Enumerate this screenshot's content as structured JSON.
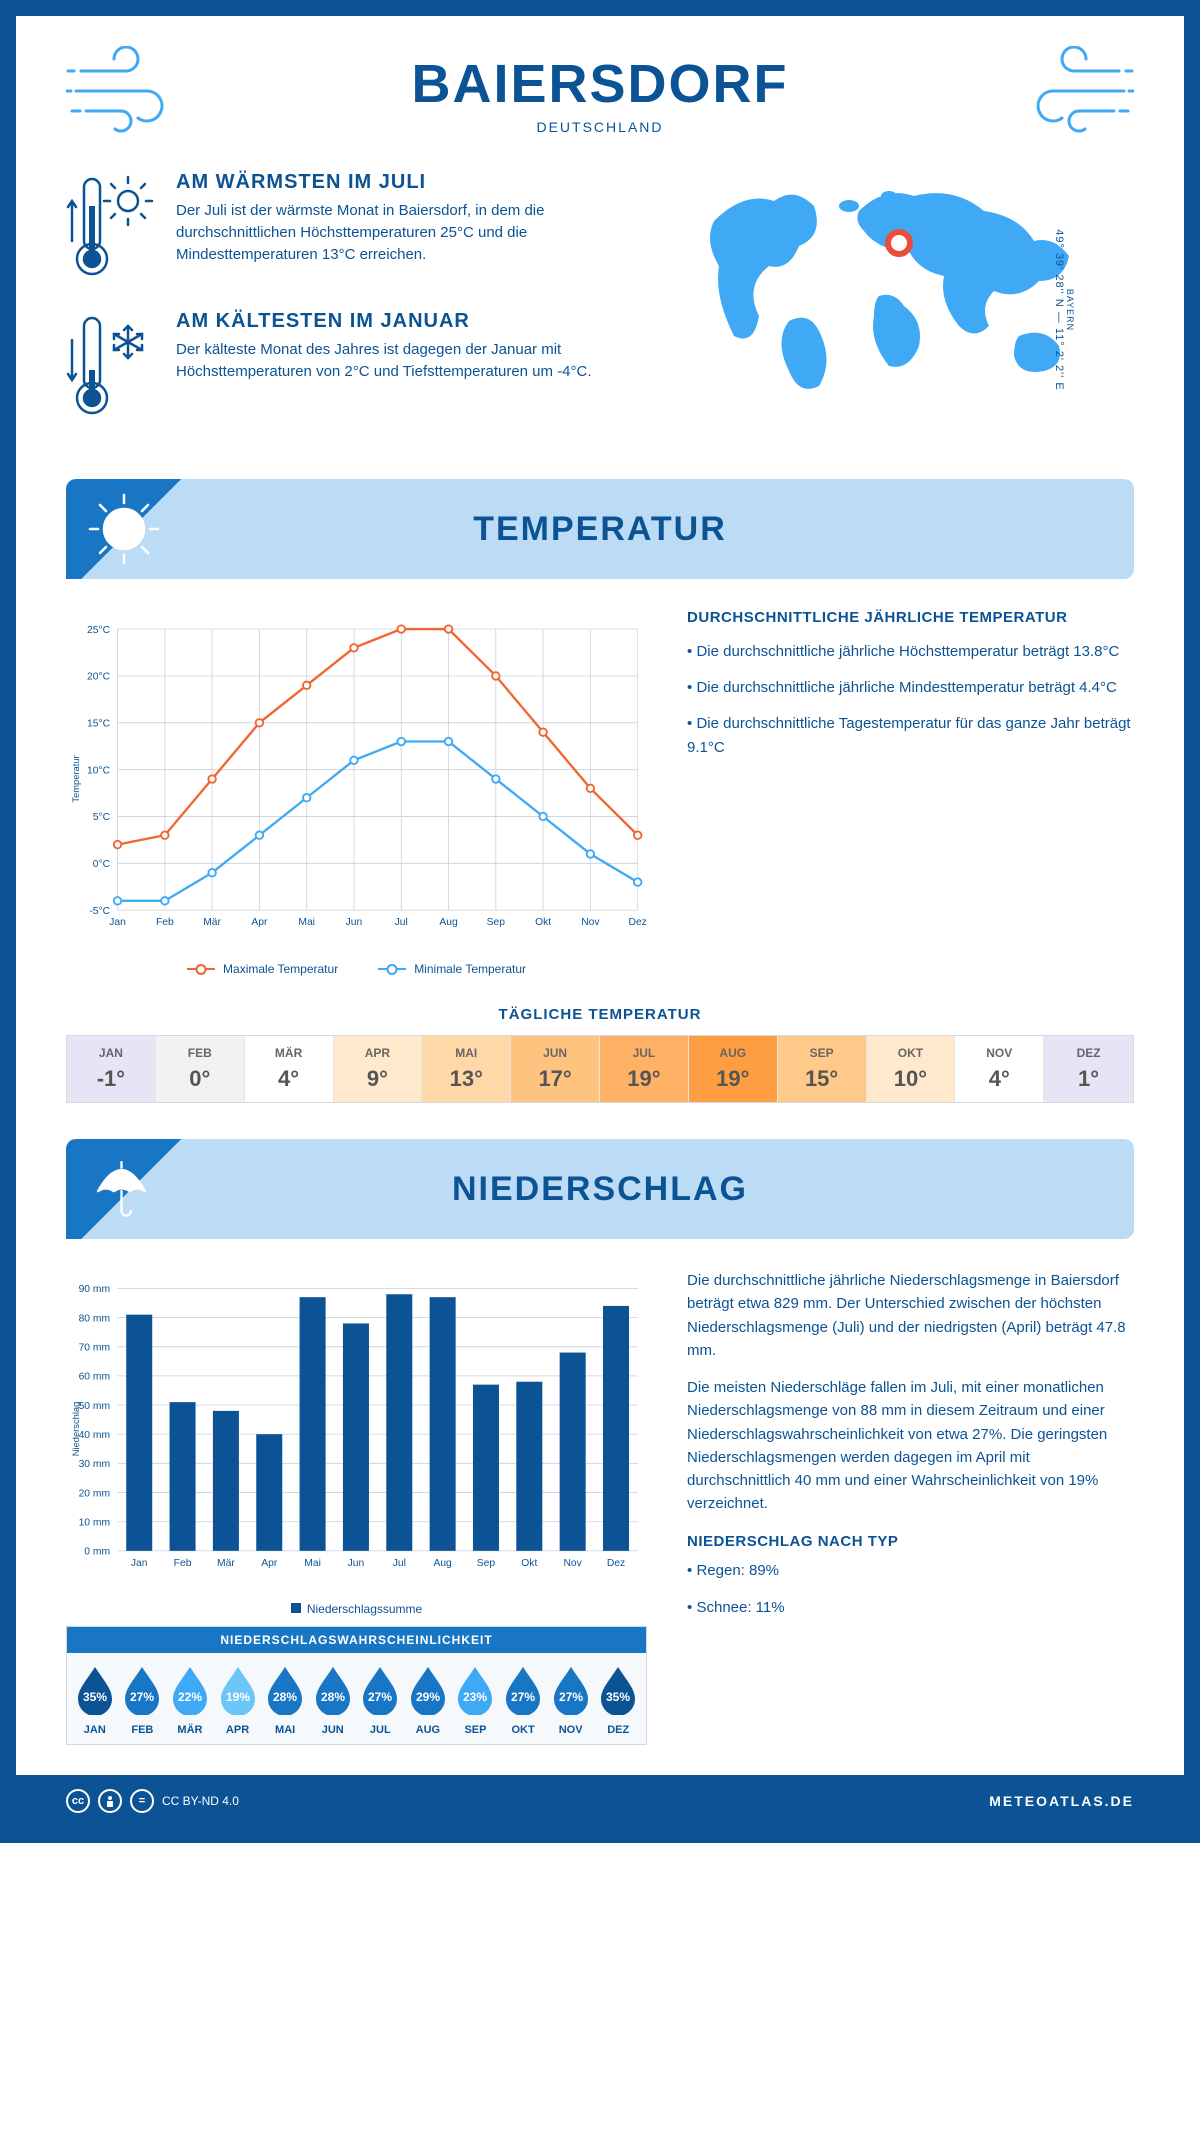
{
  "header": {
    "city": "BAIERSDORF",
    "country": "DEUTSCHLAND",
    "region": "BAYERN",
    "coords": "49° 39' 28'' N — 11° 2' 2'' E"
  },
  "colors": {
    "primary": "#0b5394",
    "banner_bg": "#bcdcf5",
    "banner_corner": "#1976c5",
    "line_max": "#f26531",
    "line_min": "#3fa9f5",
    "grid": "#d0d7e2",
    "bar": "#0b5394",
    "marker": "#e94e3a"
  },
  "facts": {
    "warm": {
      "title": "AM WÄRMSTEN IM JULI",
      "text": "Der Juli ist der wärmste Monat in Baiersdorf, in dem die durchschnittlichen Höchsttemperaturen 25°C und die Mindesttemperaturen 13°C erreichen."
    },
    "cold": {
      "title": "AM KÄLTESTEN IM JANUAR",
      "text": "Der kälteste Monat des Jahres ist dagegen der Januar mit Höchsttemperaturen von 2°C und Tiefsttemperaturen um -4°C."
    }
  },
  "temperature": {
    "section_title": "TEMPERATUR",
    "side": {
      "title": "DURCHSCHNITTLICHE JÄHRLICHE TEMPERATUR",
      "b1": "• Die durchschnittliche jährliche Höchsttemperatur beträgt 13.8°C",
      "b2": "• Die durchschnittliche jährliche Mindesttemperatur beträgt 4.4°C",
      "b3": "• Die durchschnittliche Tagestemperatur für das ganze Jahr beträgt 9.1°C"
    },
    "months": [
      "Jan",
      "Feb",
      "Mär",
      "Apr",
      "Mai",
      "Jun",
      "Jul",
      "Aug",
      "Sep",
      "Okt",
      "Nov",
      "Dez"
    ],
    "max": [
      2,
      3,
      9,
      15,
      19,
      23,
      25,
      25,
      20,
      14,
      8,
      3
    ],
    "min": [
      -4,
      -4,
      -1,
      3,
      7,
      11,
      13,
      13,
      9,
      5,
      1,
      -2
    ],
    "ylim": [
      -5,
      25
    ],
    "ytick_step": 5,
    "legend_max": "Maximale Temperatur",
    "legend_min": "Minimale Temperatur",
    "axis_label": "Temperatur",
    "daily_title": "TÄGLICHE TEMPERATUR",
    "daily_months": [
      "JAN",
      "FEB",
      "MÄR",
      "APR",
      "MAI",
      "JUN",
      "JUL",
      "AUG",
      "SEP",
      "OKT",
      "NOV",
      "DEZ"
    ],
    "daily_values": [
      "-1°",
      "0°",
      "4°",
      "9°",
      "13°",
      "17°",
      "19°",
      "19°",
      "15°",
      "10°",
      "4°",
      "1°"
    ],
    "daily_colors": [
      "#e8e3f5",
      "#f2f2f2",
      "#ffffff",
      "#ffe9cc",
      "#ffd8a8",
      "#ffc380",
      "#ffb266",
      "#ff9d42",
      "#ffc98a",
      "#ffe9cc",
      "#ffffff",
      "#e8e3f5"
    ]
  },
  "precip": {
    "section_title": "NIEDERSCHLAG",
    "values": [
      81,
      51,
      48,
      40,
      87,
      78,
      88,
      87,
      57,
      58,
      68,
      84
    ],
    "ylim": [
      0,
      90
    ],
    "ytick_step": 10,
    "axis_label": "Niederschlag",
    "legend": "Niederschlagssumme",
    "text1": "Die durchschnittliche jährliche Niederschlagsmenge in Baiersdorf beträgt etwa 829 mm. Der Unterschied zwischen der höchsten Niederschlagsmenge (Juli) und der niedrigsten (April) beträgt 47.8 mm.",
    "text2": "Die meisten Niederschläge fallen im Juli, mit einer monatlichen Niederschlagsmenge von 88 mm in diesem Zeitraum und einer Niederschlagswahrscheinlichkeit von etwa 27%. Die geringsten Niederschlagsmengen werden dagegen im April mit durchschnittlich 40 mm und einer Wahrscheinlichkeit von 19% verzeichnet.",
    "by_type_title": "NIEDERSCHLAG NACH TYP",
    "by_type_1": "• Regen: 89%",
    "by_type_2": "• Schnee: 11%",
    "prob_title": "NIEDERSCHLAGSWAHRSCHEINLICHKEIT",
    "prob": [
      "35%",
      "27%",
      "22%",
      "19%",
      "28%",
      "28%",
      "27%",
      "29%",
      "23%",
      "27%",
      "27%",
      "35%"
    ],
    "prob_colors": [
      "#0b5394",
      "#1976c5",
      "#3fa9f5",
      "#6cc5f7",
      "#1976c5",
      "#1976c5",
      "#1976c5",
      "#1976c5",
      "#3fa9f5",
      "#1976c5",
      "#1976c5",
      "#0b5394"
    ]
  },
  "footer": {
    "license": "CC BY-ND 4.0",
    "site": "METEOATLAS.DE"
  }
}
